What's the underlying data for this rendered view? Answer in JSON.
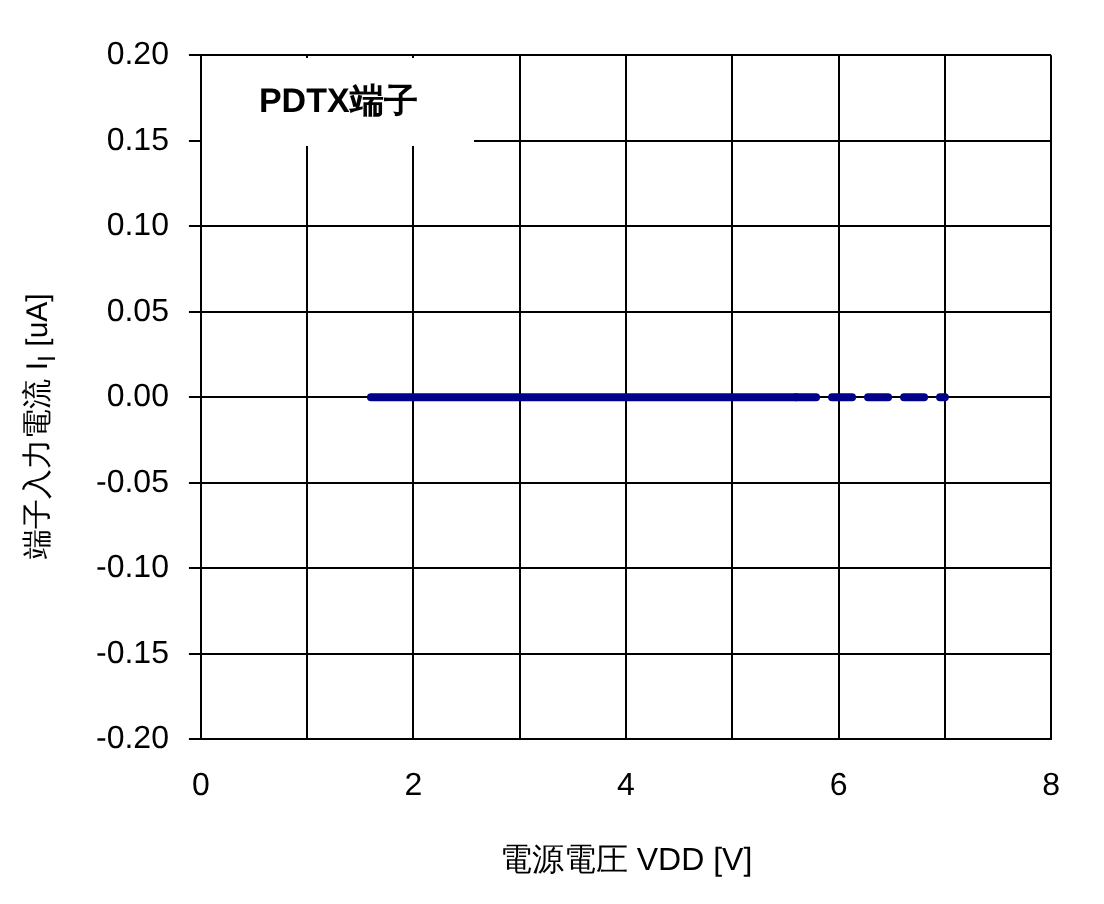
{
  "chart_data": {
    "type": "line",
    "xlabel": "電源電圧 VDD [V]",
    "ylabel": "端子入力電流 I$_{I}$ [uA]",
    "annotations": [
      "PDTX端子"
    ],
    "xlim": [
      0,
      8
    ],
    "xticks": [
      0,
      {
        "value": 1,
        "label": null
      },
      2,
      {
        "value": 3,
        "label": null
      },
      4,
      {
        "value": 5,
        "label": null
      },
      6,
      {
        "value": 7,
        "label": null
      },
      8
    ],
    "ylim": [
      -0.2,
      0.2
    ],
    "yticks": [
      {
        "value": -0.2,
        "label": "-0.20"
      },
      {
        "value": -0.15,
        "label": "-0.15"
      },
      {
        "value": -0.1,
        "label": "-0.10"
      },
      {
        "value": -0.05,
        "label": "-0.05"
      },
      {
        "value": 0,
        "label": "0.00"
      },
      {
        "value": 0.05,
        "label": "0.05"
      },
      {
        "value": 0.1,
        "label": "0.10"
      },
      {
        "value": 0.15,
        "label": "0.15"
      },
      {
        "value": 0.2,
        "label": "0.20"
      }
    ],
    "grid": true,
    "marker": "none",
    "series": [
      {
        "color": "#00008b",
        "x": [
          1.6,
          5.6
        ],
        "values": [
          0,
          0
        ],
        "line_style": "solid"
      },
      {
        "color": "#00008b",
        "x": [
          5.6,
          7.0
        ],
        "values": [
          0,
          0
        ],
        "line_style": "dashed"
      }
    ]
  }
}
